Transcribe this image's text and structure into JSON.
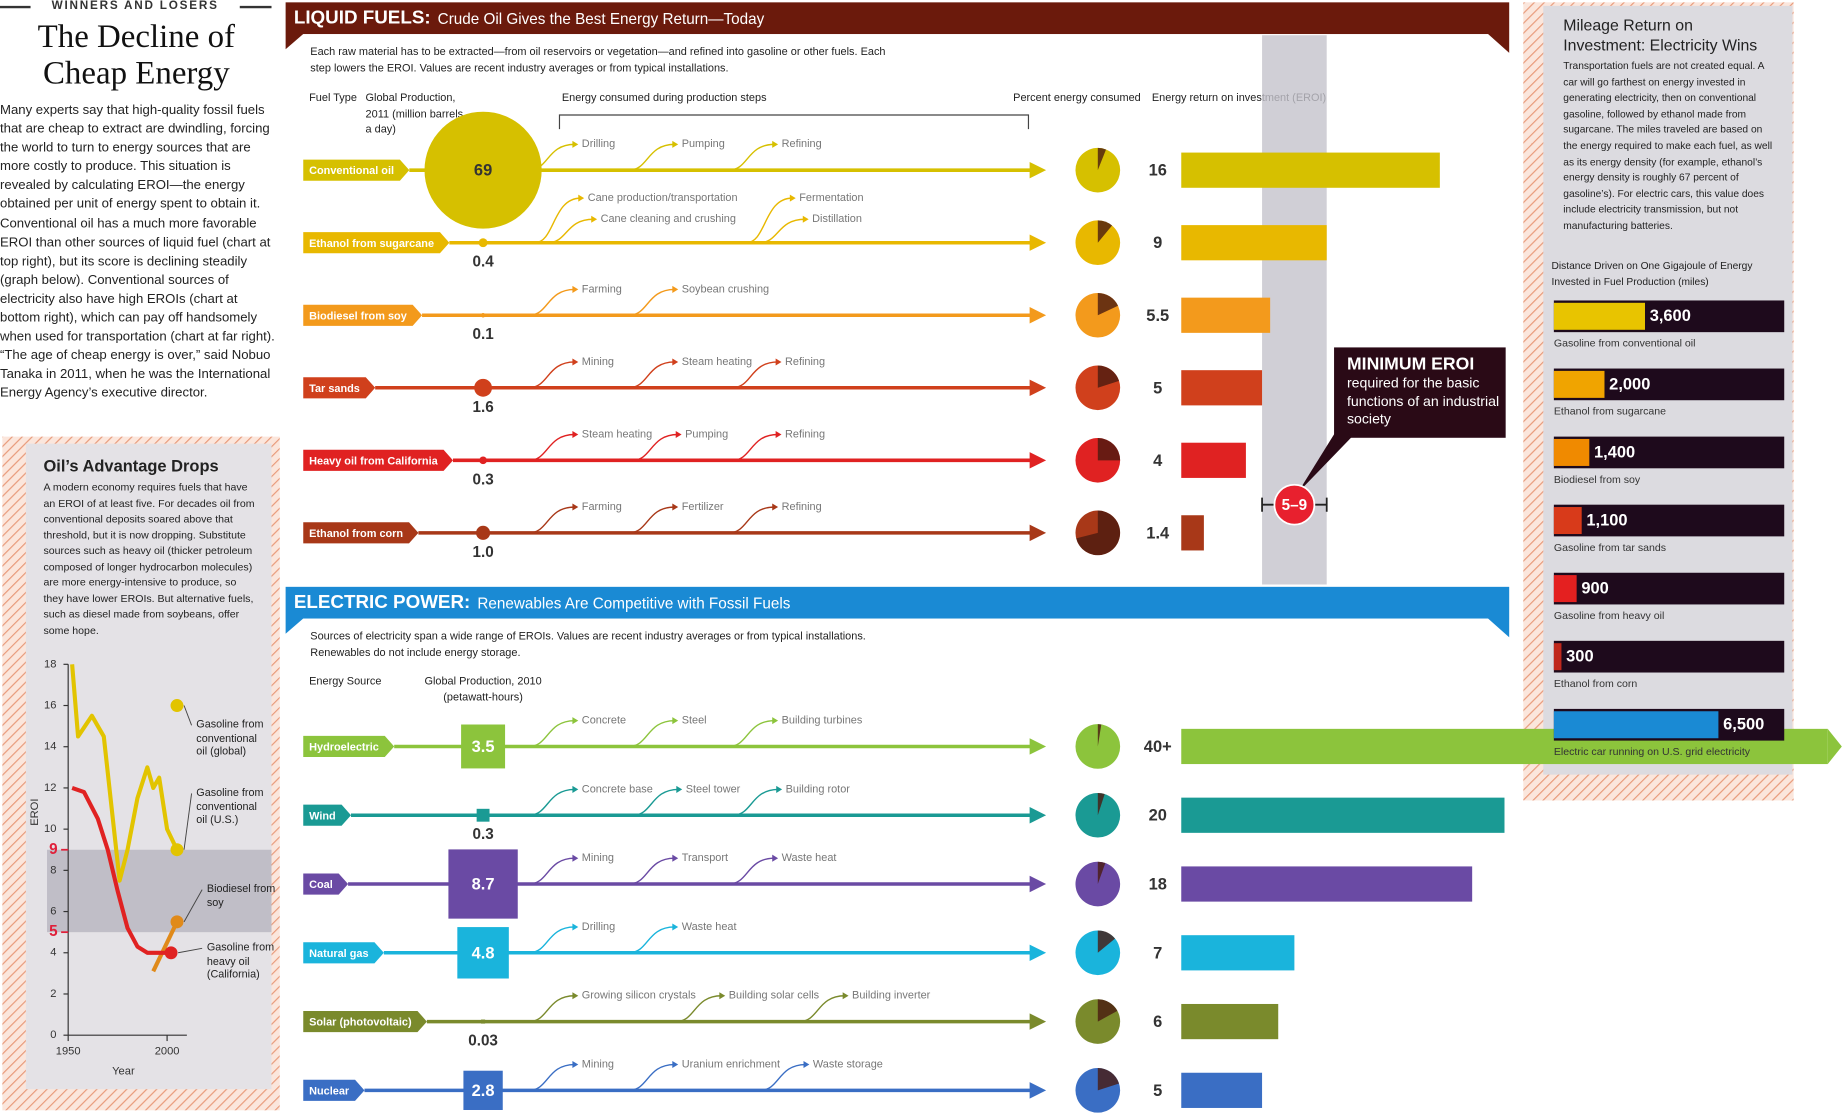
{
  "header": {
    "kicker": "WINNERS AND LOSERS",
    "title": "The Decline of Cheap Energy",
    "intro": "Many experts say that high-quality fossil fuels that are cheap to extract are dwindling, forcing the world to turn to energy sources that are more costly to produce. This situation is revealed by calculating EROI—the energy obtained per unit of energy spent to obtain it. Conventional oil has a much more favorable EROI than other sources of liquid fuel (chart at top right), but its score is declining steadily (graph below). Conventional sources of electricity also have high EROIs (chart at bottom right), which can pay off handsomely when used for transportation (chart at far right). “The age of cheap energy is over,” said Nobuo Tanaka in 2011, when he was the International Energy Agency’s executive director."
  },
  "chart_data": [
    {
      "type": "bar",
      "title": "LIQUID FUELS:",
      "subtitle": "Crude Oil Gives the Best Energy Return—Today",
      "description": "Each raw material has to be extracted—from oil reservoirs or vegetation—and refined into gasoline or other fuels. Each step lowers the EROI. Values are recent industry averages or from typical installations.",
      "column_labels": [
        "Fuel Type",
        "Global Production, 2011 (million barrels a day)",
        "Energy consumed during production steps",
        "Percent energy consumed",
        "Energy return on investment (EROI)"
      ],
      "categories": [
        "Conventional oil",
        "Ethanol from sugarcane",
        "Biodiesel from soy",
        "Tar sands",
        "Heavy oil from California",
        "Ethanol from corn"
      ],
      "colors": [
        "#d6c000",
        "#e8b800",
        "#f39a1c",
        "#d0401c",
        "#e02222",
        "#a83818"
      ],
      "production_values": [
        69,
        0.4,
        0.1,
        1.6,
        0.3,
        1.0
      ],
      "production_labels": [
        "69",
        "0.4",
        "0.1",
        "1.6",
        "0.3",
        "1.0"
      ],
      "percent_consumed": [
        6,
        11,
        18,
        20,
        25,
        71
      ],
      "steps": [
        [
          "Drilling",
          "Pumping",
          "Refining"
        ],
        [
          "Cane production/transportation",
          "Cane cleaning and crushing",
          "Fermentation",
          "Distillation"
        ],
        [
          "Farming",
          "Soybean crushing"
        ],
        [
          "Mining",
          "Steam heating",
          "Refining"
        ],
        [
          "Steam heating",
          "Pumping",
          "Refining"
        ],
        [
          "Farming",
          "Fertilizer",
          "Refining"
        ]
      ],
      "eroi": [
        16,
        9,
        5.5,
        5,
        4,
        1.4
      ],
      "xlim": [
        0,
        16
      ],
      "min_eroi": {
        "label": "MINIMUM EROI",
        "text": "required for the basic functions of an industrial society",
        "range": [
          5,
          9
        ],
        "range_label": "5–9"
      }
    },
    {
      "type": "bar",
      "title": "ELECTRIC POWER:",
      "subtitle": "Renewables Are Competitive with Fossil Fuels",
      "description": "Sources of electricity span a wide range of EROIs. Values are recent industry averages or from typical installations. Renewables do not include energy storage.",
      "column_labels": [
        "Energy Source",
        "Global Production, 2010 (petawatt-hours)"
      ],
      "categories": [
        "Hydroelectric",
        "Wind",
        "Coal",
        "Natural gas",
        "Solar (photovoltaic)",
        "Nuclear"
      ],
      "colors": [
        "#8cc43c",
        "#1a9a94",
        "#6a4aa4",
        "#1ab4dc",
        "#7a8a2c",
        "#3a6ec4"
      ],
      "production_values": [
        3.5,
        0.3,
        8.7,
        4.8,
        0.03,
        2.8
      ],
      "production_labels": [
        "3.5",
        "0.3",
        "8.7",
        "4.8",
        "0.03",
        "2.8"
      ],
      "percent_consumed": [
        2.5,
        5,
        5.5,
        14,
        17,
        20
      ],
      "steps": [
        [
          "Concrete",
          "Steel",
          "Building turbines"
        ],
        [
          "Concrete base",
          "Steel tower",
          "Building rotor"
        ],
        [
          "Mining",
          "Transport",
          "Waste heat"
        ],
        [
          "Drilling",
          "Waste heat"
        ],
        [
          "Growing silicon crystals",
          "Building solar cells",
          "Building inverter"
        ],
        [
          "Mining",
          "Uranium enrichment",
          "Waste storage"
        ]
      ],
      "eroi": [
        40,
        20,
        18,
        7,
        6,
        5
      ],
      "eroi_labels": [
        "40+",
        "20",
        "18",
        "7",
        "6",
        "5"
      ],
      "xlim": [
        0,
        20
      ]
    },
    {
      "type": "line",
      "title": "Oil’s Advantage Drops",
      "description": "A modern economy requires fuels that have an EROI of at least five. For decades oil from conventional deposits soared above that threshold, but it is now dropping. Substitute sources such as heavy oil (thicker petroleum composed of longer hydrocarbon molecules) are more energy-intensive to produce, so they have lower EROIs. But alternative fuels, such as diesel made from soybeans, offer some hope.",
      "x_label": "Year",
      "y_label": "EROI",
      "xlim": [
        1950,
        2010
      ],
      "xticks": [
        1950,
        2000
      ],
      "ylim": [
        0,
        18
      ],
      "yticks": [
        0,
        2,
        4,
        6,
        8,
        10,
        12,
        14,
        16,
        18
      ],
      "band": [
        5,
        9
      ],
      "band_ticks": [
        5,
        9
      ],
      "band_color": "#e0203a",
      "series": [
        {
          "name": "Gasoline from conventional oil (global)",
          "color": "#e2c400",
          "x": [
            2005
          ],
          "values": [
            16
          ]
        },
        {
          "name": "Gasoline from conventional oil (U.S.)",
          "color": "#e2c400",
          "x": [
            1952,
            1955,
            1962,
            1968,
            1972,
            1976,
            1980,
            1985,
            1990,
            1993,
            1996,
            2000,
            2005
          ],
          "values": [
            18,
            14.5,
            15.5,
            14.5,
            11,
            7.5,
            9,
            11.5,
            13,
            12,
            12.5,
            10,
            9
          ]
        },
        {
          "name": "Biodiesel from soy",
          "color": "#e08a1a",
          "x": [
            1993,
            2005
          ],
          "values": [
            3.1,
            5.5
          ]
        },
        {
          "name": "Gasoline from heavy oil (California)",
          "color": "#e02222",
          "x": [
            1952,
            1958,
            1965,
            1970,
            1975,
            1980,
            1985,
            1990,
            1995,
            2002
          ],
          "values": [
            12,
            11.8,
            10.5,
            9,
            7,
            5.2,
            4.3,
            4,
            4,
            4
          ]
        }
      ]
    },
    {
      "type": "bar",
      "title": "Mileage Return on Investment: Electricity Wins",
      "description": "Transportation fuels are not created equal. A car will go farthest on energy invested in generating electricity, then on conventional gasoline, followed by ethanol made from sugarcane. The miles traveled are based on the energy required to make each fuel, as well as its energy density (for example, ethanol’s energy density is roughly 67 percent of gasoline’s). For electric cars, this value does include electricity transmission, but not manufacturing batteries.",
      "subtitle": "Distance Driven on One Gigajoule of Energy Invested in Fuel Production (miles)",
      "categories": [
        "Gasoline from conventional oil",
        "Ethanol from sugarcane",
        "Biodiesel from soy",
        "Gasoline from tar sands",
        "Gasoline from heavy oil",
        "Ethanol from corn",
        "Electric car running on U.S. grid electricity"
      ],
      "colors": [
        "#e8c400",
        "#f0a400",
        "#f08a00",
        "#d83a1a",
        "#e42020",
        "#c0281c",
        "#1a8ad4"
      ],
      "values": [
        3600,
        2000,
        1400,
        1100,
        900,
        300,
        6500
      ],
      "value_labels": [
        "3,600",
        "2,000",
        "1,400",
        "1,100",
        "900",
        "300",
        "6,500"
      ],
      "xlim": [
        0,
        9100
      ]
    }
  ]
}
